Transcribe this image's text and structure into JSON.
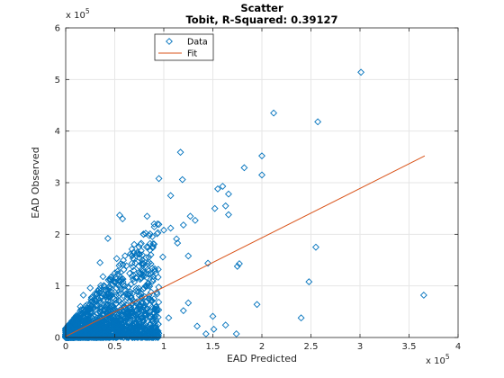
{
  "chart_data": {
    "type": "scatter",
    "title": "Scatter",
    "subtitle": "Tobit, R-Squared: 0.39127",
    "xlabel": "EAD Predicted",
    "ylabel": "EAD Observed",
    "x_exponent_label": "x 10^5",
    "y_exponent_label": "x 10^5",
    "xlim": [
      0,
      4
    ],
    "ylim": [
      0,
      6
    ],
    "x_ticks": [
      0,
      0.5,
      1,
      1.5,
      2,
      2.5,
      3,
      3.5,
      4
    ],
    "x_tick_labels": [
      "0",
      "0.5",
      "1",
      "1.5",
      "2",
      "2.5",
      "3",
      "3.5",
      "4"
    ],
    "y_ticks": [
      0,
      1,
      2,
      3,
      4,
      5,
      6
    ],
    "y_tick_labels": [
      "0",
      "1",
      "2",
      "3",
      "4",
      "5",
      "6"
    ],
    "grid": true,
    "legend_position": "top-left",
    "series": [
      {
        "name": "Data",
        "marker": "diamond",
        "color": "#0072BD",
        "points": [
          [
            3.01,
            5.14
          ],
          [
            2.12,
            4.35
          ],
          [
            2.57,
            4.18
          ],
          [
            1.82,
            3.29
          ],
          [
            2.0,
            3.52
          ],
          [
            1.17,
            3.59
          ],
          [
            2.0,
            3.15
          ],
          [
            0.95,
            3.08
          ],
          [
            1.19,
            3.06
          ],
          [
            1.07,
            2.75
          ],
          [
            1.55,
            2.88
          ],
          [
            1.6,
            2.93
          ],
          [
            1.66,
            2.78
          ],
          [
            1.52,
            2.5
          ],
          [
            1.63,
            2.55
          ],
          [
            1.66,
            2.38
          ],
          [
            0.55,
            2.37
          ],
          [
            1.07,
            2.12
          ],
          [
            1.2,
            2.18
          ],
          [
            1.27,
            2.35
          ],
          [
            1.32,
            2.27
          ],
          [
            0.43,
            1.92
          ],
          [
            0.52,
            1.53
          ],
          [
            0.62,
            1.39
          ],
          [
            0.86,
            1.82
          ],
          [
            0.99,
            1.56
          ],
          [
            1.14,
            1.83
          ],
          [
            1.25,
            1.58
          ],
          [
            1.45,
            1.44
          ],
          [
            1.75,
            1.38
          ],
          [
            1.77,
            1.43
          ],
          [
            2.55,
            1.75
          ],
          [
            2.48,
            1.08
          ],
          [
            3.65,
            0.82
          ],
          [
            1.95,
            0.64
          ],
          [
            2.4,
            0.38
          ],
          [
            1.74,
            0.07
          ],
          [
            1.51,
            0.16
          ],
          [
            1.63,
            0.24
          ],
          [
            1.2,
            0.52
          ],
          [
            1.25,
            0.67
          ],
          [
            1.5,
            0.41
          ],
          [
            0.3,
            0.72
          ],
          [
            0.45,
            1.12
          ],
          [
            0.72,
            0.95
          ],
          [
            0.8,
            1.19
          ],
          [
            0.35,
            1.45
          ],
          [
            0.25,
            0.96
          ],
          [
            0.6,
            0.6
          ],
          [
            0.9,
            0.75
          ],
          [
            1.05,
            0.38
          ],
          [
            1.34,
            0.22
          ],
          [
            0.66,
            1.62
          ],
          [
            0.94,
            2.03
          ],
          [
            1.0,
            2.08
          ],
          [
            1.13,
            1.91
          ],
          [
            0.83,
            2.35
          ],
          [
            0.58,
            2.3
          ],
          [
            0.77,
            1.68
          ],
          [
            0.38,
            1.18
          ],
          [
            0.18,
            0.82
          ],
          [
            0.22,
            0.46
          ],
          [
            0.12,
            0.35
          ],
          [
            0.05,
            0.18
          ],
          [
            0.9,
            0.12
          ],
          [
            1.43,
            0.07
          ],
          [
            0.7,
            0.28
          ],
          [
            0.48,
            0.42
          ],
          [
            0.15,
            0.6
          ],
          [
            0.08,
            0.1
          ]
        ]
      },
      {
        "name": "Fit",
        "line": true,
        "color": "#D95319",
        "points": [
          [
            0.0,
            0.02
          ],
          [
            3.66,
            3.52
          ]
        ]
      }
    ]
  }
}
